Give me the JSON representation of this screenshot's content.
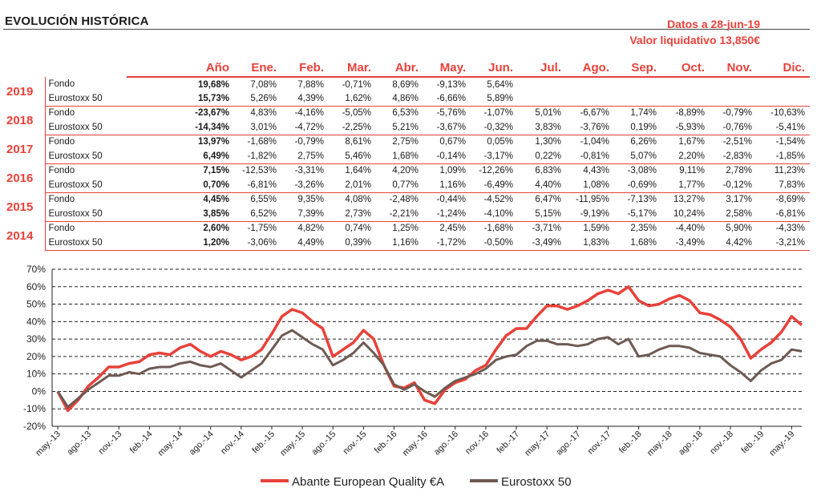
{
  "title": "EVOLUCIÓN HISTÓRICA",
  "meta": {
    "date_line": "Datos a 28-jun-19",
    "nav_line": "Valor liquidativo 13,850€"
  },
  "table": {
    "headers": [
      "Año",
      "Ene.",
      "Feb.",
      "Mar.",
      "Abr.",
      "May.",
      "Jun.",
      "Jul.",
      "Ago.",
      "Sep.",
      "Oct.",
      "Nov.",
      "Dic."
    ],
    "years": [
      {
        "year": "2019",
        "rows": [
          {
            "label": "Fondo",
            "annual": "19,68%",
            "months": [
              "7,08%",
              "7,88%",
              "-0,71%",
              "8,69%",
              "-9,13%",
              "5,64%",
              "",
              "",
              "",
              "",
              "",
              ""
            ]
          },
          {
            "label": "Eurostoxx 50",
            "annual": "15,73%",
            "months": [
              "5,26%",
              "4,39%",
              "1,62%",
              "4,86%",
              "-6,66%",
              "5,89%",
              "",
              "",
              "",
              "",
              "",
              ""
            ]
          }
        ]
      },
      {
        "year": "2018",
        "rows": [
          {
            "label": "Fondo",
            "annual": "-23,67%",
            "months": [
              "4,83%",
              "-4,16%",
              "-5,05%",
              "6,53%",
              "-5,76%",
              "-1,07%",
              "5,01%",
              "-6,67%",
              "1,74%",
              "-8,89%",
              "-0,79%",
              "-10,63%"
            ]
          },
          {
            "label": "Eurostoxx 50",
            "annual": "-14,34%",
            "months": [
              "3,01%",
              "-4,72%",
              "-2,25%",
              "5,21%",
              "-3,67%",
              "-0,32%",
              "3,83%",
              "-3,76%",
              "0,19%",
              "-5,93%",
              "-0,76%",
              "-5,41%"
            ]
          }
        ]
      },
      {
        "year": "2017",
        "rows": [
          {
            "label": "Fondo",
            "annual": "13,97%",
            "months": [
              "-1,68%",
              "-0,79%",
              "8,61%",
              "2,75%",
              "0,67%",
              "0,05%",
              "1,30%",
              "-1,04%",
              "6,26%",
              "1,67%",
              "-2,51%",
              "-1,54%"
            ]
          },
          {
            "label": "Eurostoxx 50",
            "annual": "6,49%",
            "months": [
              "-1,82%",
              "2,75%",
              "5,46%",
              "1,68%",
              "-0,14%",
              "-3,17%",
              "0,22%",
              "-0,81%",
              "5,07%",
              "2,20%",
              "-2,83%",
              "-1,85%"
            ]
          }
        ]
      },
      {
        "year": "2016",
        "rows": [
          {
            "label": "Fondo",
            "annual": "7,15%",
            "months": [
              "-12,53%",
              "-3,31%",
              "1,64%",
              "4,20%",
              "1,09%",
              "-12,26%",
              "6,83%",
              "4,43%",
              "-3,08%",
              "9,11%",
              "2,78%",
              "11,23%"
            ]
          },
          {
            "label": "Eurostoxx 50",
            "annual": "0,70%",
            "months": [
              "-6,81%",
              "-3,26%",
              "2,01%",
              "0,77%",
              "1,16%",
              "-6,49%",
              "4,40%",
              "1,08%",
              "-0,69%",
              "1,77%",
              "-0,12%",
              "7,83%"
            ]
          }
        ]
      },
      {
        "year": "2015",
        "rows": [
          {
            "label": "Fondo",
            "annual": "4,45%",
            "months": [
              "6,55%",
              "9,35%",
              "4,08%",
              "-2,48%",
              "-0,44%",
              "-4,52%",
              "6,47%",
              "-11,95%",
              "-7,13%",
              "13,27%",
              "3,17%",
              "-8,69%"
            ]
          },
          {
            "label": "Eurostoxx 50",
            "annual": "3,85%",
            "months": [
              "6,52%",
              "7,39%",
              "2,73%",
              "-2,21%",
              "-1,24%",
              "-4,10%",
              "5,15%",
              "-9,19%",
              "-5,17%",
              "10,24%",
              "2,58%",
              "-6,81%"
            ]
          }
        ]
      },
      {
        "year": "2014",
        "rows": [
          {
            "label": "Fondo",
            "annual": "2,60%",
            "months": [
              "-1,75%",
              "4,82%",
              "0,74%",
              "1,25%",
              "2,45%",
              "-1,68%",
              "-3,71%",
              "1,59%",
              "2,35%",
              "-4,40%",
              "5,90%",
              "-4,33%"
            ]
          },
          {
            "label": "Eurostoxx 50",
            "annual": "1,20%",
            "months": [
              "-3,06%",
              "4,49%",
              "0,39%",
              "1,16%",
              "-1,72%",
              "-0,50%",
              "-3,49%",
              "1,83%",
              "1,68%",
              "-3,49%",
              "4,42%",
              "-3,21%"
            ]
          }
        ]
      }
    ]
  },
  "chart_data": {
    "type": "line",
    "ylim": [
      -20,
      70
    ],
    "yticks": [
      "-20%",
      "-10%",
      "0%",
      "10%",
      "20%",
      "30%",
      "40%",
      "50%",
      "60%",
      "70%"
    ],
    "xticks": [
      "may.-13",
      "ago.-13",
      "nov.-13",
      "feb.-14",
      "may.-14",
      "ago.-14",
      "nov.-14",
      "feb.-15",
      "may.-15",
      "ago.-15",
      "nov.-15",
      "feb.-16",
      "may.-16",
      "ago.-16",
      "nov.-16",
      "feb.-17",
      "may.-17",
      "ago.-17",
      "nov.-17",
      "feb.-18",
      "may.-18",
      "ago.-18",
      "nov.-18",
      "feb.-19",
      "may.-19"
    ],
    "x": [
      "may.-13",
      "jun.-13",
      "jul.-13",
      "ago.-13",
      "sep.-13",
      "oct.-13",
      "nov.-13",
      "dic.-13",
      "ene.-14",
      "feb.-14",
      "mar.-14",
      "abr.-14",
      "may.-14",
      "jun.-14",
      "jul.-14",
      "ago.-14",
      "sep.-14",
      "oct.-14",
      "nov.-14",
      "dic.-14",
      "ene.-15",
      "feb.-15",
      "mar.-15",
      "abr.-15",
      "may.-15",
      "jun.-15",
      "jul.-15",
      "ago.-15",
      "sep.-15",
      "oct.-15",
      "nov.-15",
      "dic.-15",
      "ene.-16",
      "feb.-16",
      "mar.-16",
      "abr.-16",
      "may.-16",
      "jun.-16",
      "jul.-16",
      "ago.-16",
      "sep.-16",
      "oct.-16",
      "nov.-16",
      "dic.-16",
      "ene.-17",
      "feb.-17",
      "mar.-17",
      "abr.-17",
      "may.-17",
      "jun.-17",
      "jul.-17",
      "ago.-17",
      "sep.-17",
      "oct.-17",
      "nov.-17",
      "dic.-17",
      "ene.-18",
      "feb.-18",
      "mar.-18",
      "abr.-18",
      "may.-18",
      "jun.-18",
      "jul.-18",
      "ago.-18",
      "sep.-18",
      "oct.-18",
      "nov.-18",
      "dic.-18",
      "ene.-19",
      "feb.-19",
      "mar.-19",
      "abr.-19",
      "may.-19",
      "jun.-19"
    ],
    "series": [
      {
        "name": "Abante European Quality €A",
        "color": "#e8413a",
        "values": [
          0,
          -11,
          -5,
          3,
          8,
          14,
          14,
          16,
          17,
          21,
          22,
          21,
          25,
          27,
          23,
          20,
          23,
          21,
          18,
          20,
          24,
          33,
          43,
          47,
          45,
          40,
          36,
          20,
          24,
          28,
          35,
          30,
          15,
          3,
          2,
          5,
          -5,
          -7,
          1,
          5,
          7,
          12,
          15,
          24,
          32,
          36,
          36,
          43,
          49,
          49,
          47,
          49,
          52,
          56,
          58,
          56,
          60,
          52,
          49,
          50,
          53,
          55,
          52,
          45,
          44,
          41,
          37,
          30,
          19,
          24,
          28,
          34,
          43,
          38
        ]
      },
      {
        "name": "Eurostoxx 50",
        "color": "#6e5a52",
        "values": [
          0,
          -9,
          -4,
          1,
          5,
          9,
          9,
          11,
          10,
          13,
          14,
          14,
          16,
          17,
          15,
          14,
          16,
          12,
          8,
          12,
          16,
          24,
          32,
          35,
          31,
          27,
          24,
          15,
          18,
          22,
          28,
          22,
          15,
          4,
          1,
          4,
          0,
          -3,
          2,
          6,
          8,
          10,
          13,
          18,
          20,
          21,
          26,
          29,
          29,
          27,
          27,
          26,
          27,
          30,
          31,
          27,
          30,
          20,
          21,
          24,
          26,
          26,
          25,
          22,
          21,
          20,
          15,
          11,
          6,
          12,
          16,
          18,
          24,
          23
        ]
      }
    ],
    "grid": true,
    "legend": "bottom-center"
  }
}
